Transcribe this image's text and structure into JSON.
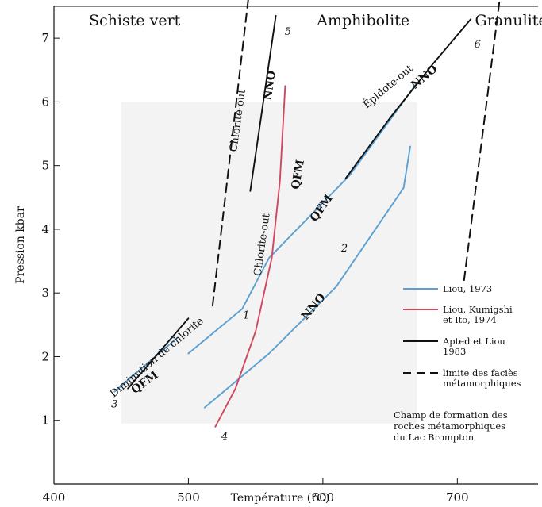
{
  "chart_data": {
    "type": "line",
    "title": "",
    "xlabel": "Température (°C)",
    "ylabel": "Pression kbar",
    "xlim": [
      400,
      760
    ],
    "ylim": [
      0,
      7.5
    ],
    "x_ticks": [
      400,
      500,
      600,
      700
    ],
    "x_tick_labels": [
      "400",
      "500",
      "600",
      "700"
    ],
    "y_ticks": [
      1,
      2,
      3,
      4,
      5,
      6,
      7
    ],
    "y_tick_labels": [
      "1",
      "2",
      "3",
      "4",
      "5",
      "6",
      "7"
    ],
    "grid": false,
    "legend_position": "bottom-right",
    "facies": [
      {
        "label": "Schiste vert",
        "x": 460
      },
      {
        "label": "Amphibolite",
        "x": 630
      },
      {
        "label": "Granulite",
        "x": 740
      }
    ],
    "series": [
      {
        "key": "liou-qfm",
        "group": "Liou, 1973",
        "color": "#5aa0d2",
        "dash": false,
        "points": [
          [
            500,
            2.05
          ],
          [
            540,
            2.75
          ],
          [
            560,
            3.55
          ],
          [
            620,
            4.85
          ],
          [
            670,
            6.3
          ]
        ]
      },
      {
        "key": "liou-nno",
        "group": "Liou, 1973",
        "color": "#5aa0d2",
        "dash": false,
        "points": [
          [
            512,
            1.2
          ],
          [
            560,
            2.05
          ],
          [
            610,
            3.1
          ],
          [
            660,
            4.65
          ],
          [
            665,
            5.3
          ]
        ]
      },
      {
        "key": "liou-chlorite",
        "group": "Liou, 1973",
        "color": "#5aa0d2",
        "dash": false,
        "points": [
          [
            445,
            1.45
          ],
          [
            492,
            2.3
          ]
        ]
      },
      {
        "key": "ktk",
        "group": "Liou, Kumigshi et Ito, 1974",
        "color": "#d0485e",
        "dash": false,
        "points": [
          [
            520,
            0.9
          ],
          [
            535,
            1.5
          ],
          [
            550,
            2.4
          ],
          [
            562,
            3.55
          ],
          [
            568,
            4.75
          ],
          [
            572,
            6.25
          ]
        ]
      },
      {
        "key": "apted-chl",
        "group": "Apted et Liou 1983",
        "color": "#111111",
        "dash": false,
        "points": [
          [
            546,
            4.6
          ],
          [
            565,
            7.35
          ]
        ]
      },
      {
        "key": "apted-epi",
        "group": "Apted et Liou 1983",
        "color": "#111111",
        "dash": false,
        "points": [
          [
            617,
            4.8
          ],
          [
            650,
            5.75
          ],
          [
            682,
            6.6
          ],
          [
            710,
            7.3
          ]
        ]
      },
      {
        "key": "apted-low",
        "group": "Apted et Liou 1983",
        "color": "#111111",
        "dash": false,
        "points": [
          [
            455,
            1.5
          ],
          [
            500,
            2.6
          ]
        ]
      },
      {
        "key": "facies-1",
        "group": "limite des faciès métamorphiques",
        "color": "#111111",
        "dash": true,
        "points": [
          [
            518,
            2.8
          ],
          [
            545,
            7.7
          ]
        ]
      },
      {
        "key": "facies-2",
        "group": "limite des faciès métamorphiques",
        "color": "#111111",
        "dash": true,
        "points": [
          [
            705,
            3.2
          ],
          [
            732,
            7.7
          ]
        ]
      }
    ],
    "annotations": [
      {
        "text": "Chlorite-out",
        "x": 539,
        "y": 5.7,
        "rot": -82,
        "bold": false
      },
      {
        "text": "NNO",
        "x": 563,
        "y": 6.25,
        "rot": -82,
        "bold": true
      },
      {
        "text": "QFM",
        "x": 584,
        "y": 4.85,
        "rot": -80,
        "bold": true
      },
      {
        "text": "Chlorite-out",
        "x": 557,
        "y": 3.75,
        "rot": -82,
        "bold": false
      },
      {
        "text": "QFM",
        "x": 601,
        "y": 4.3,
        "rot": -55,
        "bold": true
      },
      {
        "text": "Épidote-out",
        "x": 650,
        "y": 6.2,
        "rot": -40,
        "bold": false
      },
      {
        "text": "NNO",
        "x": 677,
        "y": 6.35,
        "rot": -40,
        "bold": true
      },
      {
        "text": "NNO",
        "x": 595,
        "y": 2.75,
        "rot": -50,
        "bold": true
      },
      {
        "text": "Diminution de chlorite",
        "x": 478,
        "y": 1.95,
        "rot": -40,
        "bold": false
      },
      {
        "text": "QFM",
        "x": 469,
        "y": 1.55,
        "rot": -36,
        "bold": true
      }
    ],
    "numbers": [
      {
        "text": "1",
        "x": 543,
        "y": 2.6
      },
      {
        "text": "2",
        "x": 616,
        "y": 3.65
      },
      {
        "text": "3",
        "x": 445,
        "y": 1.2
      },
      {
        "text": "4",
        "x": 527,
        "y": 0.7
      },
      {
        "text": "5",
        "x": 574,
        "y": 7.05
      },
      {
        "text": "6",
        "x": 715,
        "y": 6.85
      }
    ],
    "legend": [
      {
        "lines": [
          "Liou, 1973"
        ],
        "color": "#5aa0d2",
        "dash": false
      },
      {
        "lines": [
          "Liou, Kumigshi",
          "et Ito, 1974"
        ],
        "color": "#d0485e",
        "dash": false
      },
      {
        "lines": [
          "Apted et Liou",
          "1983"
        ],
        "color": "#111111",
        "dash": false
      },
      {
        "lines": [
          "limite des faciès",
          "métamorphiques"
        ],
        "color": "#111111",
        "dash": true
      }
    ],
    "note_lines": [
      "Champ de formation des",
      "roches métamorphiques",
      "du Lac Brompton"
    ],
    "shaded_field": {
      "x": [
        450,
        670
      ],
      "y": [
        0.95,
        6.0
      ],
      "color": "#f3f3f3"
    }
  }
}
